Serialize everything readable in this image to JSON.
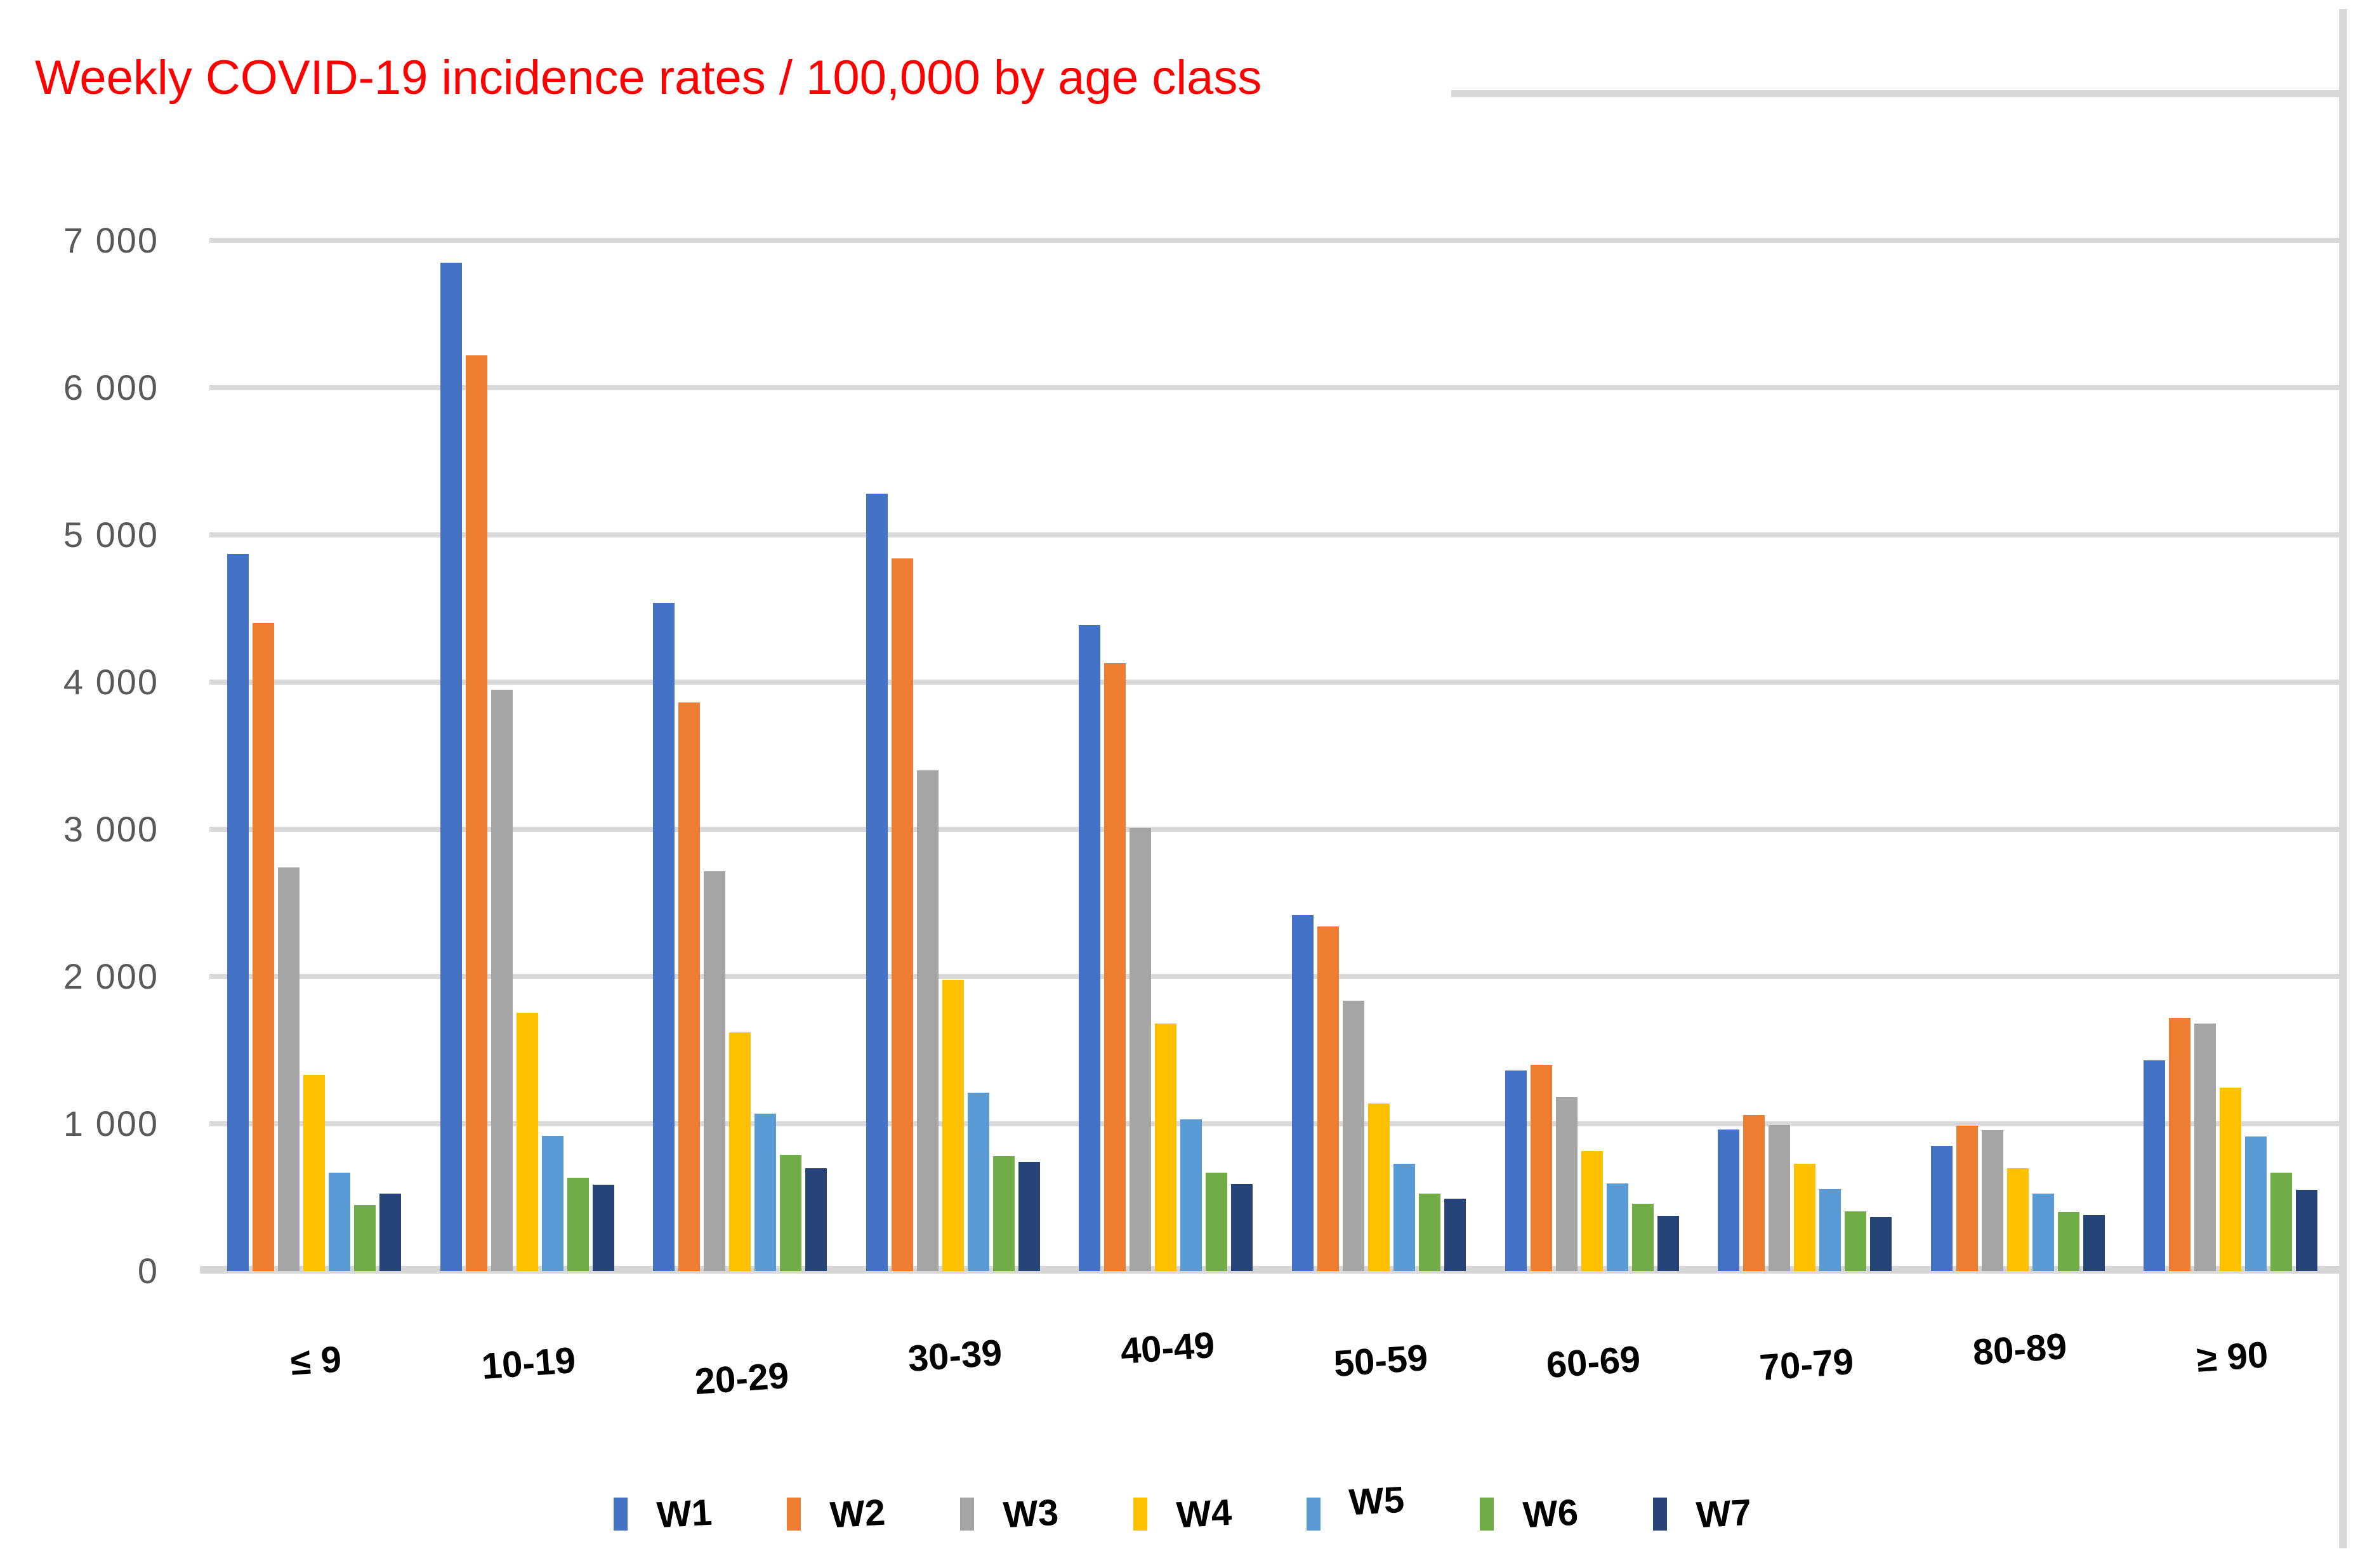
{
  "title": {
    "text": "Weekly COVID-19 incidence rates / 100,000 by age class",
    "color": "#FF0000"
  },
  "y_axis": {
    "tick_labels": [
      "7 000",
      "6 000",
      "5 000",
      "4 000",
      "3 000",
      "2 000",
      "1 000",
      "0"
    ],
    "tick_values": [
      7000,
      6000,
      5000,
      4000,
      3000,
      2000,
      1000,
      0
    ],
    "max": 8000,
    "tick_interval": 1000
  },
  "x_axis": {
    "categories": [
      "≤ 9",
      "10-19",
      "20-29",
      "30-39",
      "40-49",
      "50-59",
      "60-69",
      "70-79",
      "80-89",
      "≥ 90"
    ]
  },
  "legend": {
    "position": "bottom",
    "items": [
      {
        "label": "W1",
        "color": "#4472C4"
      },
      {
        "label": "W2",
        "color": "#ED7D31"
      },
      {
        "label": "W3",
        "color": "#A5A5A5"
      },
      {
        "label": "W4",
        "color": "#FFC000"
      },
      {
        "label": "W5",
        "color": "#5B9BD5"
      },
      {
        "label": "W6",
        "color": "#70AD47"
      },
      {
        "label": "W7",
        "color": "#264478"
      }
    ]
  },
  "style": {
    "grid_color": "#d9d9d9",
    "axis_text_color": "#595959",
    "title_color": "#FF0000"
  },
  "chart_data": {
    "type": "bar",
    "title": "Weekly COVID-19 incidence rates / 100,000 by age class",
    "xlabel": "",
    "ylabel": "",
    "ylim": [
      0,
      8000
    ],
    "grid": true,
    "legend_position": "bottom",
    "categories": [
      "≤ 9",
      "10-19",
      "20-29",
      "30-39",
      "40-49",
      "50-59",
      "60-69",
      "70-79",
      "80-89",
      "≥ 90"
    ],
    "series": [
      {
        "name": "W1",
        "color": "#4472C4",
        "values": [
          4870,
          6850,
          4540,
          5280,
          4390,
          2420,
          1360,
          960,
          850,
          1430
        ]
      },
      {
        "name": "W2",
        "color": "#ED7D31",
        "values": [
          4400,
          6220,
          3860,
          4840,
          4130,
          2340,
          1400,
          1060,
          985,
          1720
        ]
      },
      {
        "name": "W3",
        "color": "#A5A5A5",
        "values": [
          2740,
          3950,
          2715,
          3400,
          3010,
          1835,
          1180,
          990,
          955,
          1680
        ]
      },
      {
        "name": "W4",
        "color": "#FFC000",
        "values": [
          1330,
          1755,
          1620,
          1980,
          1680,
          1140,
          815,
          730,
          700,
          1245
        ]
      },
      {
        "name": "W5",
        "color": "#5B9BD5",
        "values": [
          670,
          920,
          1070,
          1210,
          1030,
          730,
          595,
          555,
          525,
          915
        ]
      },
      {
        "name": "W6",
        "color": "#70AD47",
        "values": [
          450,
          635,
          790,
          780,
          670,
          525,
          455,
          405,
          400,
          670
        ]
      },
      {
        "name": "W7",
        "color": "#264478",
        "values": [
          525,
          585,
          700,
          740,
          590,
          490,
          375,
          365,
          380,
          550
        ]
      }
    ]
  }
}
